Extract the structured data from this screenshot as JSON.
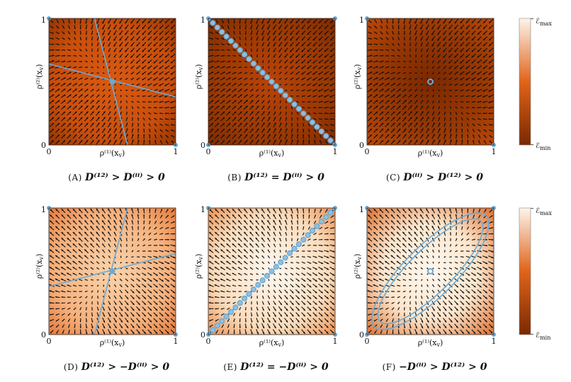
{
  "colorbar": {
    "max_label": "ℰ",
    "max_sub": "max",
    "min_label": "ℰ",
    "min_sub": "min"
  },
  "axes": {
    "x_label": "ρ⁽¹⁾(x",
    "x_sub": "v",
    "x_close": ")",
    "y_label": "ρ⁽²⁾(x",
    "y_sub": "v",
    "y_close": ")",
    "tick0": "0",
    "tick1": "1"
  },
  "colors": {
    "dark": "#8a3000",
    "mid": "#d95a12",
    "light": "#fcefe2",
    "marker": "#6aaad6",
    "arrow": "#111111"
  },
  "panels": [
    {
      "id": "A",
      "tag": "(A)",
      "caption": "D⁽¹²⁾ > D⁽ⁱⁱ⁾ > 0",
      "tone": "dark"
    },
    {
      "id": "B",
      "tag": "(B)",
      "caption": "D⁽¹²⁾ = D⁽ⁱⁱ⁾ > 0",
      "tone": "dark"
    },
    {
      "id": "C",
      "tag": "(C)",
      "caption": "D⁽ⁱⁱ⁾ > D⁽¹²⁾ > 0",
      "tone": "dark"
    },
    {
      "id": "D",
      "tag": "(D)",
      "caption": "D⁽¹²⁾ > −D⁽ⁱⁱ⁾ > 0",
      "tone": "light"
    },
    {
      "id": "E",
      "tag": "(E)",
      "caption": "D⁽¹²⁾ = −D⁽ⁱⁱ⁾ > 0",
      "tone": "light"
    },
    {
      "id": "F",
      "tag": "(F)",
      "caption": "−D⁽ⁱⁱ⁾ > D⁽¹²⁾ > 0",
      "tone": "light"
    }
  ]
}
